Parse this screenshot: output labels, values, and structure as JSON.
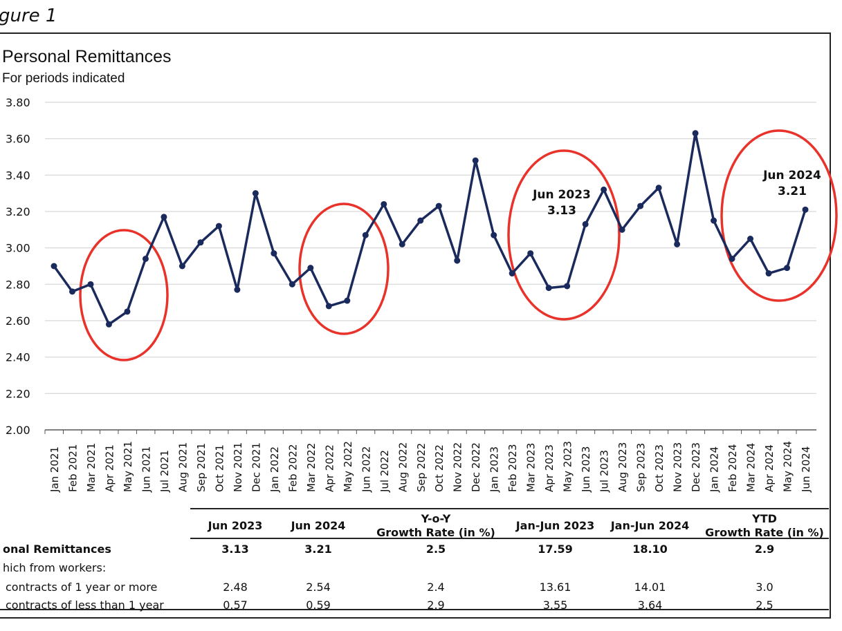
{
  "figure_label": "gure 1",
  "chart_data": {
    "type": "line",
    "title": "Personal Remittances",
    "subtitle": "For periods indicated",
    "xlabel": "",
    "ylabel": "",
    "ylim": [
      2.0,
      3.8
    ],
    "yticks": [
      "3.80",
      "3.60",
      "3.40",
      "3.20",
      "3.00",
      "2.80",
      "2.60",
      "2.40",
      "2.20",
      "2.00"
    ],
    "grid": true,
    "line_color": "#1b2a5c",
    "highlight_color": "#e8322a",
    "categories": [
      "Jan 2021",
      "Feb 2021",
      "Mar 2021",
      "Apr 2021",
      "May 2021",
      "Jun 2021",
      "Jul 2021",
      "Aug 2021",
      "Sep 2021",
      "Oct 2021",
      "Nov 2021",
      "Dec 2021",
      "Jan 2022",
      "Feb 2022",
      "Mar 2022",
      "Apr 2022",
      "May 2022",
      "Jun 2022",
      "Jul 2022",
      "Aug 2022",
      "Sep 2022",
      "Oct 2022",
      "Nov 2022",
      "Dec 2022",
      "Jan 2023",
      "Feb 2023",
      "Mar 2023",
      "Apr 2023",
      "May 2023",
      "Jun 2023",
      "Jul 2023",
      "Aug 2023",
      "Sep 2023",
      "Oct 2023",
      "Nov 2023",
      "Dec 2023",
      "Jan 2024",
      "Feb 2024",
      "Mar 2024",
      "Apr 2024",
      "May 2024",
      "Jun 2024"
    ],
    "values": [
      2.9,
      2.76,
      2.8,
      2.58,
      2.65,
      2.94,
      3.17,
      2.9,
      3.03,
      3.12,
      2.77,
      3.3,
      2.97,
      2.8,
      2.89,
      2.68,
      2.71,
      3.07,
      3.24,
      3.02,
      3.15,
      3.23,
      2.93,
      3.48,
      3.07,
      2.86,
      2.97,
      2.78,
      2.79,
      3.13,
      3.32,
      3.1,
      3.23,
      3.33,
      3.02,
      3.63,
      3.15,
      2.94,
      3.05,
      2.86,
      2.89,
      3.21
    ],
    "highlight_ranges": [
      [
        "Mar 2021",
        "Jun 2021"
      ],
      [
        "Mar 2022",
        "Jun 2022"
      ],
      [
        "Mar 2023",
        "Jun 2023"
      ],
      [
        "Mar 2024",
        "Jun 2024"
      ]
    ],
    "annotations": [
      {
        "label": "Jun 2023",
        "value": "3.13"
      },
      {
        "label": "Jun 2024",
        "value": "3.21"
      }
    ]
  },
  "table": {
    "headers": [
      "Jun 2023",
      "Jun 2024",
      "Y-o-Y",
      "Growth Rate (in %)",
      "Jan-Jun 2023",
      "Jan-Jun 2024",
      "YTD",
      "Growth Rate (in %)"
    ],
    "rows": [
      {
        "label": "onal Remittances",
        "values": [
          "3.13",
          "3.21",
          "2.5",
          "17.59",
          "18.10",
          "2.9"
        ]
      },
      {
        "label": "hich from workers:",
        "values": []
      },
      {
        "label": "contracts of 1 year or more",
        "values": [
          "2.48",
          "2.54",
          "2.4",
          "13.61",
          "14.01",
          "3.0"
        ]
      },
      {
        "label": "contracts of less than 1 year",
        "values": [
          "0.57",
          "0.59",
          "2.9",
          "3.55",
          "3.64",
          "2.5"
        ]
      }
    ]
  }
}
